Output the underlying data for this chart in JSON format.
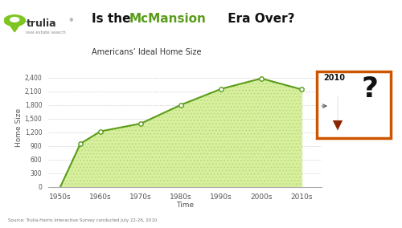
{
  "x_labels": [
    "1950s",
    "1960s",
    "1970s",
    "1980s",
    "1990s",
    "2000s",
    "2010s"
  ],
  "x_values": [
    0,
    1,
    2,
    3,
    4,
    5,
    6
  ],
  "y_values": [
    0,
    950,
    1220,
    1390,
    1800,
    2150,
    2380,
    2140
  ],
  "x_data": [
    0,
    0.5,
    1,
    2,
    3,
    4,
    5,
    6
  ],
  "yticks": [
    0,
    300,
    600,
    900,
    1200,
    1500,
    1800,
    2100,
    2400
  ],
  "ytick_labels": [
    "0",
    "300",
    "600",
    "900",
    "1,200",
    "1,500",
    "1,800",
    "2,100",
    "2,400"
  ],
  "ylim": [
    0,
    2600
  ],
  "xlabel": "Time",
  "ylabel": "Home Size",
  "line_color": "#5a9c1a",
  "fill_color": "#c8e898",
  "marker_color": "#ffffff",
  "marker_edge_color": "#5a9c1a",
  "bg_color": "#ffffff",
  "grid_color": "#bbbbbb",
  "source_text": "Source: Trulia-Harris Interactive Survey conducted July 22-26, 2010.",
  "arrow_color": "#8b2500",
  "box_edge_color": "#cc5500",
  "title_black1": "Is the ",
  "title_green": "McMansion",
  "title_black2": " Era Over?",
  "subtitle": "Americans’ Ideal Home Size",
  "trulia_color": "#333333",
  "trulia_green": "#7dc520"
}
